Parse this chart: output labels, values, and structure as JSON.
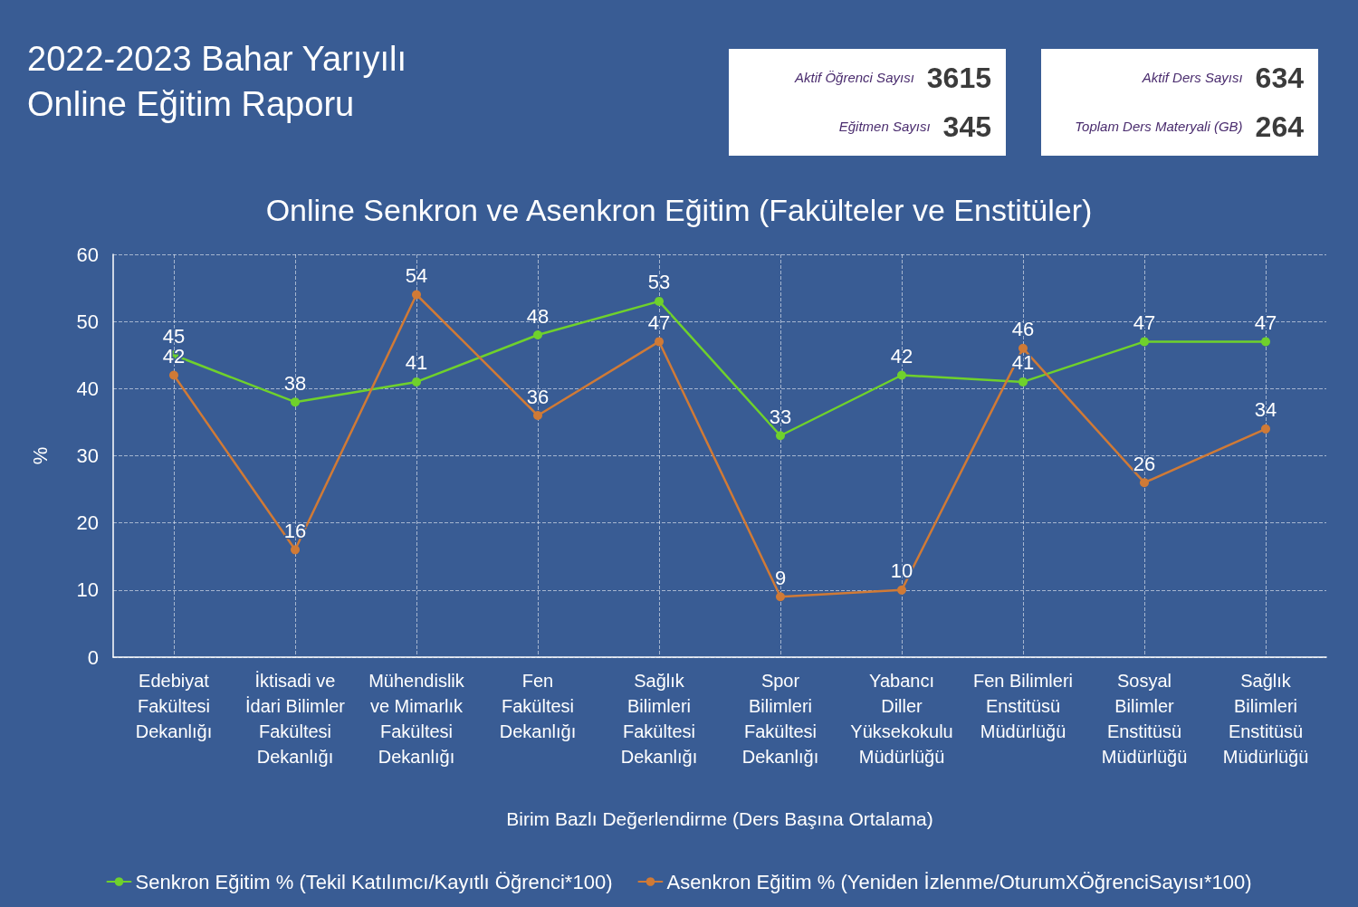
{
  "chart_data": [
    {
      "type": "other",
      "title": "2022-2023 Bahar Yarıyılı Online Eğitim Raporu",
      "categories": [
        "Aktif Öğrenci Sayısı",
        "Eğitmen Sayısı",
        "Aktif Ders Sayısı",
        "Toplam Ders Materyali (GB)"
      ],
      "values": [
        3615,
        345,
        634,
        264
      ],
      "data_labels": true
    },
    {
      "type": "line",
      "title": "Online Senkron ve Asenkron Eğitim (Fakülteler ve Enstitüler)",
      "xlabel": "Birim Bazlı Değerlendirme (Ders Başına Ortalama)",
      "ylabel": "%",
      "categories": [
        "Edebiyat Fakültesi Dekanlığı",
        "İktisadi ve İdari Bilimler Fakültesi Dekanlığı",
        "Mühendislik ve Mimarlık Fakültesi Dekanlığı",
        "Fen Fakültesi Dekanlığı",
        "Sağlık Bilimleri Fakültesi Dekanlığı",
        "Spor Bilimleri Fakültesi Dekanlığı",
        "Yabancı Diller Yüksekokulu Müdürlüğü",
        "Fen Bilimleri Enstitüsü Müdürlüğü",
        "Sosyal Bilimler Enstitüsü Müdürlüğü",
        "Sağlık Bilimleri Enstitüsü Müdürlüğü"
      ],
      "series": [
        {
          "name": "Senkron Eğitim % (Tekil Katılımcı/Kayıtlı Öğrenci*100)",
          "color": "#6fd12c",
          "values": [
            45,
            38,
            41,
            48,
            53,
            33,
            42,
            41,
            47,
            47
          ]
        },
        {
          "name": "Asenkron Eğitim % (Yeniden İzlenme/OturumXÖğrenciSayısı*100)",
          "color": "#d07a36",
          "values": [
            42,
            16,
            54,
            36,
            47,
            9,
            10,
            46,
            26,
            34
          ]
        }
      ],
      "ylim": [
        0,
        60
      ],
      "yticks": [
        0,
        10,
        20,
        30,
        40,
        50,
        60
      ],
      "grid": true,
      "legend": "bottom",
      "marker": "circle",
      "line_style": "solid",
      "data_labels": true
    }
  ]
}
